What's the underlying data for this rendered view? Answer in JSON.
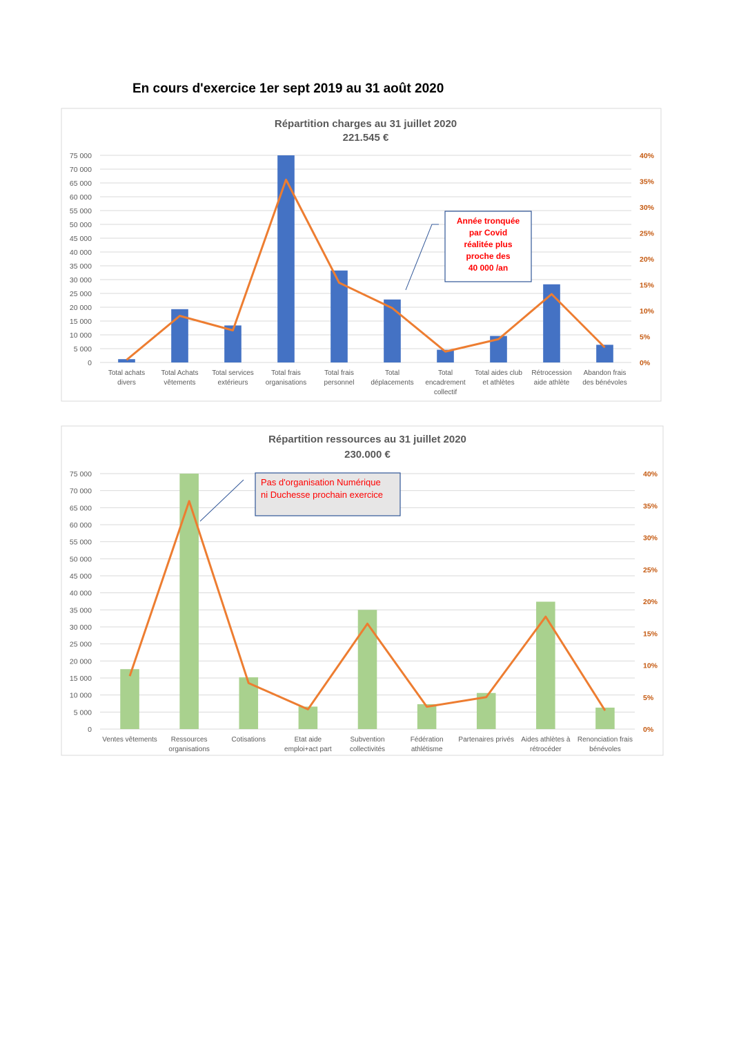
{
  "heading": "En cours d'exercice 1er sept 2019 au 31 août 2020",
  "chart_data": [
    {
      "type": "bar",
      "title": "Répartition charges au 31 juillet 2020",
      "subtitle": "221.545 €",
      "categories": [
        "Total achats divers",
        "Total Achats vêtements",
        "Total services extérieurs",
        "Total frais organisations",
        "Total frais personnel",
        "Total déplacements",
        "Total encadrement collectif",
        "Total aides club et athlètes",
        "Rétrocession aide athlète",
        "Abandon frais des bénévoles"
      ],
      "series": [
        {
          "type": "bar",
          "color": "#4472c4",
          "values": [
            1200,
            19300,
            13400,
            75000,
            33300,
            22800,
            4600,
            9600,
            28300,
            6400
          ]
        },
        {
          "type": "line",
          "axis": "y2",
          "color": "#ed7d31",
          "values": [
            0.5,
            9,
            6.2,
            35.3,
            15.4,
            10.5,
            2.1,
            4.5,
            13.2,
            2.9
          ]
        }
      ],
      "ylim": [
        0,
        75000
      ],
      "yticks": [
        0,
        {
          "value": 5000,
          "label": "5 000"
        },
        {
          "value": 10000,
          "label": "10 000"
        },
        {
          "value": 15000,
          "label": "15 000"
        },
        {
          "value": 20000,
          "label": "20 000"
        },
        {
          "value": 25000,
          "label": "25 000"
        },
        {
          "value": 30000,
          "label": "30 000"
        },
        {
          "value": 35000,
          "label": "35 000"
        },
        {
          "value": 40000,
          "label": "40 000"
        },
        {
          "value": 45000,
          "label": "45 000"
        },
        {
          "value": 50000,
          "label": "50 000"
        },
        {
          "value": 55000,
          "label": "55 000"
        },
        {
          "value": 60000,
          "label": "60 000"
        },
        {
          "value": 65000,
          "label": "65 000"
        },
        {
          "value": 70000,
          "label": "70 000"
        },
        {
          "value": 75000,
          "label": "75 000"
        }
      ],
      "y2lim": [
        0,
        40
      ],
      "y2ticks": [
        {
          "value": 0,
          "label": "0%"
        },
        {
          "value": 5,
          "label": "5%"
        },
        {
          "value": 10,
          "label": "10%"
        },
        {
          "value": 15,
          "label": "15%"
        },
        {
          "value": 20,
          "label": "20%"
        },
        {
          "value": 25,
          "label": "25%"
        },
        {
          "value": 30,
          "label": "30%"
        },
        {
          "value": 35,
          "label": "35%"
        },
        {
          "value": 40,
          "label": "40%"
        }
      ],
      "grid": true,
      "annotation": [
        "Année tronquée",
        "par Covid",
        "réalitée plus",
        "proche des",
        "40 000 /an"
      ]
    },
    {
      "type": "bar",
      "title": "Répartition ressources au 31 juillet 2020",
      "subtitle": "230.000 €",
      "categories": [
        "Ventes vêtements",
        "Ressources organisations",
        "Cotisations",
        "Etat aide emploi+act part",
        "Subvention collectivités",
        "Fédération athlétisme",
        "Partenaires privés",
        "Aides athlètes à rétrocéder",
        "Renonciation frais bénévoles"
      ],
      "series": [
        {
          "type": "bar",
          "color": "#a9d18e",
          "values": [
            17600,
            75000,
            15200,
            6600,
            35000,
            7300,
            10600,
            37400,
            6300
          ]
        },
        {
          "type": "line",
          "axis": "y2",
          "color": "#ed7d31",
          "values": [
            8.3,
            35.7,
            7.2,
            3.1,
            16.5,
            3.5,
            5.0,
            17.6,
            2.9
          ]
        }
      ],
      "ylim": [
        0,
        75000
      ],
      "yticks": [
        0,
        {
          "value": 5000,
          "label": "5 000"
        },
        {
          "value": 10000,
          "label": "10 000"
        },
        {
          "value": 15000,
          "label": "15 000"
        },
        {
          "value": 20000,
          "label": "20 000"
        },
        {
          "value": 25000,
          "label": "25 000"
        },
        {
          "value": 30000,
          "label": "30 000"
        },
        {
          "value": 35000,
          "label": "35 000"
        },
        {
          "value": 40000,
          "label": "40 000"
        },
        {
          "value": 45000,
          "label": "45 000"
        },
        {
          "value": 50000,
          "label": "50 000"
        },
        {
          "value": 55000,
          "label": "55 000"
        },
        {
          "value": 60000,
          "label": "60 000"
        },
        {
          "value": 65000,
          "label": "65 000"
        },
        {
          "value": 70000,
          "label": "70 000"
        },
        {
          "value": 75000,
          "label": "75 000"
        }
      ],
      "y2lim": [
        0,
        40
      ],
      "y2ticks": [
        {
          "value": 0,
          "label": "0%"
        },
        {
          "value": 5,
          "label": "5%"
        },
        {
          "value": 10,
          "label": "10%"
        },
        {
          "value": 15,
          "label": "15%"
        },
        {
          "value": 20,
          "label": "20%"
        },
        {
          "value": 25,
          "label": "25%"
        },
        {
          "value": 30,
          "label": "30%"
        },
        {
          "value": 35,
          "label": "35%"
        },
        {
          "value": 40,
          "label": "40%"
        }
      ],
      "grid": true,
      "annotation": [
        "Pas d'organisation Numérique",
        "ni Duchesse prochain exercice"
      ]
    }
  ]
}
